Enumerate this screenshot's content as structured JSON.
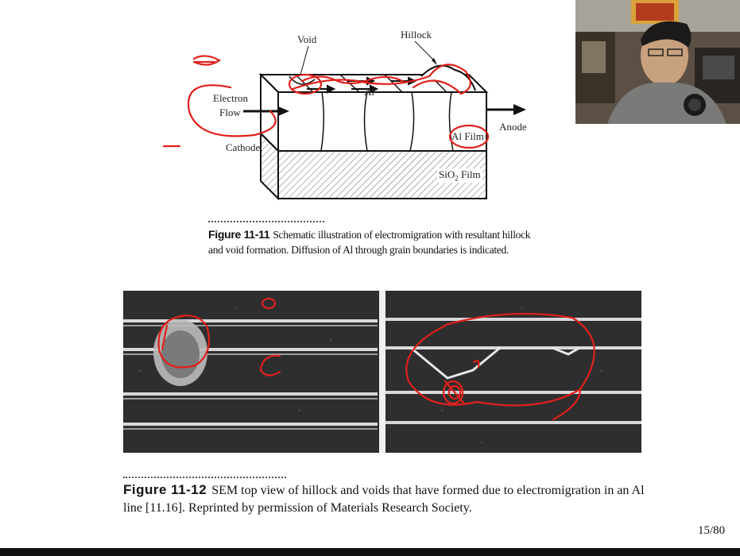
{
  "figure1": {
    "labels": {
      "void": "Void",
      "hillock": "Hillock",
      "electron_flow_line1": "Electron",
      "electron_flow_line2": "Flow",
      "cathode": "Cathode",
      "anode": "Anode",
      "al_inner": "Al",
      "al_film": "Al Film",
      "sio2_film_main": "SiO",
      "sio2_film_sub": "2",
      "sio2_film_tail": " Film"
    },
    "caption_number": "Figure 11-11",
    "caption_text": "Schematic illustration of electromigration with resultant hillock and void formation. Diffusion of Al through grain boundaries is indicated."
  },
  "figure2": {
    "caption_number": "Figure 11-12",
    "caption_text": "SEM top view of hillock and voids that have formed due to electromigration in an Al line [11.16]. Reprinted by permission of Materials Research Society."
  },
  "page_number": "15/80",
  "colors": {
    "annotation_red": "#e0201c",
    "bottom_bar": "#111111"
  }
}
